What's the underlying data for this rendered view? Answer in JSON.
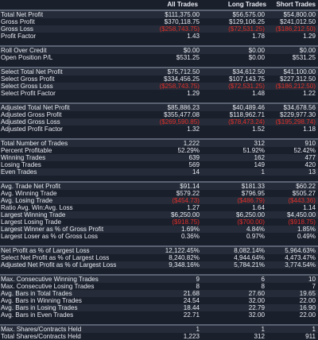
{
  "header": {
    "col1": "All Trades",
    "col2": "Long Trades",
    "col3": "Short Trades"
  },
  "sections": [
    {
      "rows": [
        {
          "label": "Total Net Profit",
          "v": [
            "$111,375.00",
            "$56,575.00",
            "$54,800.00"
          ],
          "neg": [
            false,
            false,
            false
          ]
        },
        {
          "label": "Gross Profit",
          "v": [
            "$370,118.75",
            "$129,106.25",
            "$241,012.50"
          ],
          "neg": [
            false,
            false,
            false
          ]
        },
        {
          "label": "Gross Loss",
          "v": [
            "($258,743.75)",
            "($72,531.25)",
            "($186,212.50)"
          ],
          "neg": [
            true,
            true,
            true
          ]
        },
        {
          "label": "Profit Factor",
          "v": [
            "1.43",
            "1.78",
            "1.29"
          ],
          "neg": [
            false,
            false,
            false
          ]
        }
      ]
    },
    {
      "rows": [
        {
          "label": "Roll Over Credit",
          "v": [
            "$0.00",
            "$0.00",
            "$0.00"
          ],
          "neg": [
            false,
            false,
            false
          ]
        },
        {
          "label": "Open Position P/L",
          "v": [
            "$531.25",
            "$0.00",
            "$531.25"
          ],
          "neg": [
            false,
            false,
            false
          ]
        }
      ]
    },
    {
      "rows": [
        {
          "label": "Select Total Net Profit",
          "v": [
            "$75,712.50",
            "$34,612.50",
            "$41,100.00"
          ],
          "neg": [
            false,
            false,
            false
          ]
        },
        {
          "label": "Select Gross Profit",
          "v": [
            "$334,456.25",
            "$107,143.75",
            "$227,312.50"
          ],
          "neg": [
            false,
            false,
            false
          ]
        },
        {
          "label": "Select Gross Loss",
          "v": [
            "($258,743.75)",
            "($72,531.25)",
            "($186,212.50)"
          ],
          "neg": [
            true,
            true,
            true
          ]
        },
        {
          "label": "Select Profit Factor",
          "v": [
            "1.29",
            "1.48",
            "1.22"
          ],
          "neg": [
            false,
            false,
            false
          ]
        }
      ]
    },
    {
      "rows": [
        {
          "label": "Adjusted Total Net Profit",
          "v": [
            "$85,886.23",
            "$40,489.46",
            "$34,678.56"
          ],
          "neg": [
            false,
            false,
            false
          ]
        },
        {
          "label": "Adjusted Gross Profit",
          "v": [
            "$355,477.08",
            "$118,962.71",
            "$229,977.30"
          ],
          "neg": [
            false,
            false,
            false
          ]
        },
        {
          "label": "Adjusted Gross Loss",
          "v": [
            "($269,590.85)",
            "($78,473.24)",
            "($195,298.74)"
          ],
          "neg": [
            true,
            true,
            true
          ]
        },
        {
          "label": "Adjusted Profit Factor",
          "v": [
            "1.32",
            "1.52",
            "1.18"
          ],
          "neg": [
            false,
            false,
            false
          ]
        }
      ]
    },
    {
      "rows": [
        {
          "label": "Total Number of Trades",
          "v": [
            "1,222",
            "312",
            "910"
          ],
          "neg": [
            false,
            false,
            false
          ]
        },
        {
          "label": "Percent Profitable",
          "v": [
            "52.29%",
            "51.92%",
            "52.42%"
          ],
          "neg": [
            false,
            false,
            false
          ]
        },
        {
          "label": "Winning Trades",
          "v": [
            "639",
            "162",
            "477"
          ],
          "neg": [
            false,
            false,
            false
          ]
        },
        {
          "label": "Losing Trades",
          "v": [
            "569",
            "149",
            "420"
          ],
          "neg": [
            false,
            false,
            false
          ]
        },
        {
          "label": "Even Trades",
          "v": [
            "14",
            "1",
            "13"
          ],
          "neg": [
            false,
            false,
            false
          ]
        }
      ]
    },
    {
      "rows": [
        {
          "label": "Avg. Trade Net Profit",
          "v": [
            "$91.14",
            "$181.33",
            "$60.22"
          ],
          "neg": [
            false,
            false,
            false
          ]
        },
        {
          "label": "Avg. Winning Trade",
          "v": [
            "$579.22",
            "$796.95",
            "$505.27"
          ],
          "neg": [
            false,
            false,
            false
          ]
        },
        {
          "label": "Avg. Losing Trade",
          "v": [
            "($454.73)",
            "($486.79)",
            "($443.36)"
          ],
          "neg": [
            true,
            true,
            true
          ]
        },
        {
          "label": "Ratio Avg. Win:Avg. Loss",
          "v": [
            "1.27",
            "1.64",
            "1.14"
          ],
          "neg": [
            false,
            false,
            false
          ]
        },
        {
          "label": "Largest Winning Trade",
          "v": [
            "$6,250.00",
            "$6,250.00",
            "$4,450.00"
          ],
          "neg": [
            false,
            false,
            false
          ]
        },
        {
          "label": "Largest Losing Trade",
          "v": [
            "($918.75)",
            "($700.00)",
            "($918.75)"
          ],
          "neg": [
            true,
            true,
            true
          ]
        },
        {
          "label": "Largest Winner as % of Gross Profit",
          "v": [
            "1.69%",
            "4.84%",
            "1.85%"
          ],
          "neg": [
            false,
            false,
            false
          ]
        },
        {
          "label": "Largest Loser as % of Gross Loss",
          "v": [
            "0.36%",
            "0.97%",
            "0.49%"
          ],
          "neg": [
            false,
            false,
            false
          ]
        }
      ]
    },
    {
      "rows": [
        {
          "label": "Net Profit as % of Largest Loss",
          "v": [
            "12,122.45%",
            "8,082.14%",
            "5,964.63%"
          ],
          "neg": [
            false,
            false,
            false
          ]
        },
        {
          "label": "Select Net Profit as % of Largest Loss",
          "v": [
            "8,240.82%",
            "4,944.64%",
            "4,473.47%"
          ],
          "neg": [
            false,
            false,
            false
          ]
        },
        {
          "label": "Adjusted Net Profit as % of Largest Loss",
          "v": [
            "9,348.16%",
            "5,784.21%",
            "3,774.54%"
          ],
          "neg": [
            false,
            false,
            false
          ]
        }
      ]
    },
    {
      "rows": [
        {
          "label": "Max. Consecutive Winning Trades",
          "v": [
            "9",
            "6",
            "10"
          ],
          "neg": [
            false,
            false,
            false
          ]
        },
        {
          "label": "Max. Consecutive Losing Trades",
          "v": [
            "8",
            "8",
            "7"
          ],
          "neg": [
            false,
            false,
            false
          ]
        },
        {
          "label": "Avg. Bars in Total Trades",
          "v": [
            "21.68",
            "27.60",
            "19.65"
          ],
          "neg": [
            false,
            false,
            false
          ]
        },
        {
          "label": "Avg. Bars in Winning Trades",
          "v": [
            "24.54",
            "32.00",
            "22.00"
          ],
          "neg": [
            false,
            false,
            false
          ]
        },
        {
          "label": "Avg. Bars in Losing Trades",
          "v": [
            "18.44",
            "22.79",
            "16.90"
          ],
          "neg": [
            false,
            false,
            false
          ]
        },
        {
          "label": "Avg. Bars in Even Trades",
          "v": [
            "22.71",
            "32.00",
            "22.00"
          ],
          "neg": [
            false,
            false,
            false
          ]
        }
      ]
    },
    {
      "rows": [
        {
          "label": "Max. Shares/Contracts Held",
          "v": [
            "1",
            "1",
            "1"
          ],
          "neg": [
            false,
            false,
            false
          ]
        },
        {
          "label": "Total Shares/Contracts Held",
          "v": [
            "1,223",
            "312",
            "911"
          ],
          "neg": [
            false,
            false,
            false
          ]
        }
      ]
    }
  ]
}
